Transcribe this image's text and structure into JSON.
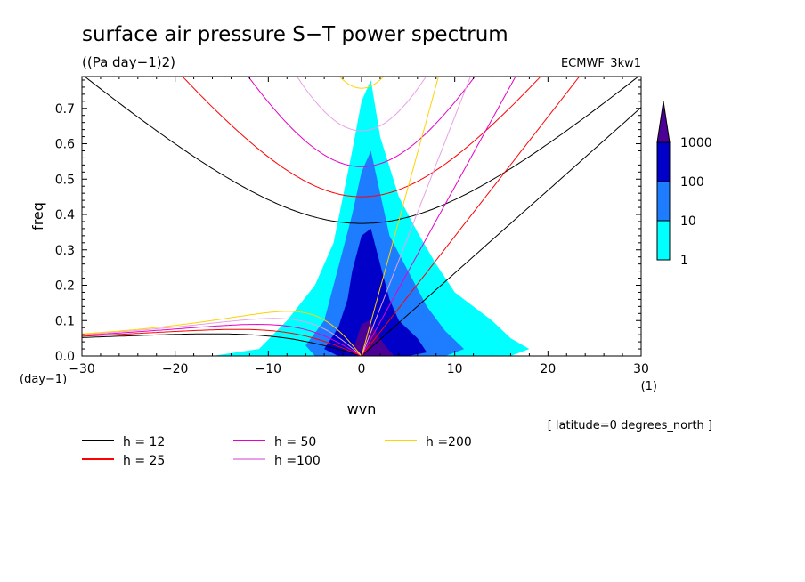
{
  "chart_data": {
    "type": "heatmap",
    "title": "surface air pressure S−T power spectrum",
    "units": "((Pa day−1)2)",
    "dataset_label": "ECMWF_3kw1",
    "xlabel": "wvn",
    "ylabel": "freq",
    "x_unit": "(1)",
    "y_unit": "(day−1)",
    "location_note": "[ latitude=0 degrees_north ]",
    "xlim": [
      -30,
      30
    ],
    "ylim": [
      0,
      0.79
    ],
    "x_ticks": [
      -30,
      -20,
      -10,
      0,
      10,
      20,
      30
    ],
    "x_tick_labels": [
      "−30",
      "−20",
      "−10",
      "0",
      "10",
      "20",
      "30"
    ],
    "y_ticks": [
      0.0,
      0.1,
      0.2,
      0.3,
      0.4,
      0.5,
      0.6,
      0.7
    ],
    "y_tick_labels": [
      "0.0",
      "0.1",
      "0.2",
      "0.3",
      "0.4",
      "0.5",
      "0.6",
      "0.7"
    ],
    "colorbar": {
      "levels": [
        "1",
        "10",
        "100",
        "1000"
      ],
      "colors": [
        "#00ffff",
        "#1e7cff",
        "#0000c8",
        "#4b0096"
      ]
    },
    "dispersion_curves": [
      {
        "label": "h = 12",
        "h": 12,
        "color": "#000000"
      },
      {
        "label": "h = 25",
        "h": 25,
        "color": "#ff0000"
      },
      {
        "label": "h = 50",
        "h": 50,
        "color": "#e600c8"
      },
      {
        "label": "h =100",
        "h": 100,
        "color": "#e6a0e6"
      },
      {
        "label": "h =200",
        "h": 200,
        "color": "#ffd200"
      }
    ],
    "power_bands": [
      {
        "level": 1,
        "k": [
          -11,
          -8,
          -5,
          -3,
          -2,
          -1,
          0,
          1,
          2,
          4,
          6,
          8,
          10,
          14,
          16,
          18,
          16,
          12,
          8,
          5,
          3,
          2,
          1,
          0,
          -1,
          -3,
          -7,
          -12,
          -16
        ],
        "f": [
          0.02,
          0.1,
          0.2,
          0.32,
          0.45,
          0.58,
          0.72,
          0.78,
          0.62,
          0.45,
          0.35,
          0.26,
          0.18,
          0.1,
          0.05,
          0.02,
          0.0,
          0.0,
          0.0,
          0.0,
          0.0,
          0.0,
          0.0,
          0.0,
          0.0,
          0.0,
          0.0,
          0.0,
          0.0
        ]
      },
      {
        "level": 10,
        "k": [
          -6,
          -4,
          -3,
          -2,
          -1,
          0,
          1,
          2,
          3,
          5,
          7,
          9,
          11,
          9,
          6,
          3,
          1,
          -1,
          -3,
          -5
        ],
        "f": [
          0.03,
          0.1,
          0.2,
          0.3,
          0.4,
          0.52,
          0.58,
          0.46,
          0.34,
          0.24,
          0.14,
          0.07,
          0.02,
          0.0,
          0.0,
          0.0,
          0.0,
          0.0,
          0.0,
          0.0
        ]
      },
      {
        "level": 100,
        "k": [
          -4,
          -2.5,
          -1.5,
          -1,
          0,
          1,
          2,
          3,
          4,
          6,
          7,
          5,
          3,
          1,
          0,
          -1,
          -2.5
        ],
        "f": [
          0.02,
          0.08,
          0.16,
          0.24,
          0.34,
          0.36,
          0.26,
          0.16,
          0.1,
          0.05,
          0.01,
          0.0,
          0.0,
          0.0,
          0.0,
          0.0,
          0.0
        ]
      },
      {
        "level": 1000,
        "k": [
          -1,
          -0.5,
          0,
          0.8,
          1.5,
          2.5,
          3.5,
          2,
          1,
          0,
          -0.5
        ],
        "f": [
          0.01,
          0.05,
          0.09,
          0.1,
          0.07,
          0.03,
          0.0,
          0.0,
          0.0,
          0.0,
          0.0
        ]
      }
    ]
  }
}
